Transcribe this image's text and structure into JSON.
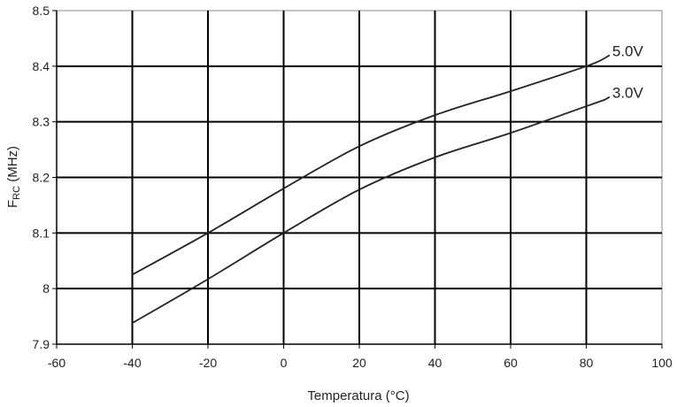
{
  "chart_data": {
    "type": "line",
    "xlabel": "Temperatura (°C)",
    "ylabel": {
      "main": "F",
      "sub": "RC",
      "unit": " (MHz)"
    },
    "xlim": [
      -60,
      100
    ],
    "ylim": [
      7.9,
      8.5
    ],
    "xticks": [
      -60,
      -40,
      -20,
      0,
      20,
      40,
      60,
      80,
      100
    ],
    "yticks": [
      7.9,
      8,
      8.1,
      8.2,
      8.3,
      8.4,
      8.5
    ],
    "ytick_labels": [
      "7.9",
      "8",
      "8.1",
      "8.2",
      "8.3",
      "8.4",
      "8.5"
    ],
    "grid": true,
    "series": [
      {
        "name": "5.0V",
        "x": [
          -40,
          -20,
          0,
          20,
          40,
          60,
          80,
          85
        ],
        "y": [
          8.025,
          8.1,
          8.18,
          8.256,
          8.312,
          8.355,
          8.4,
          8.415
        ]
      },
      {
        "name": "3.0V",
        "x": [
          -40,
          -20,
          0,
          20,
          40,
          60,
          80,
          85
        ],
        "y": [
          7.938,
          8.017,
          8.1,
          8.178,
          8.236,
          8.28,
          8.328,
          8.34
        ]
      }
    ]
  }
}
